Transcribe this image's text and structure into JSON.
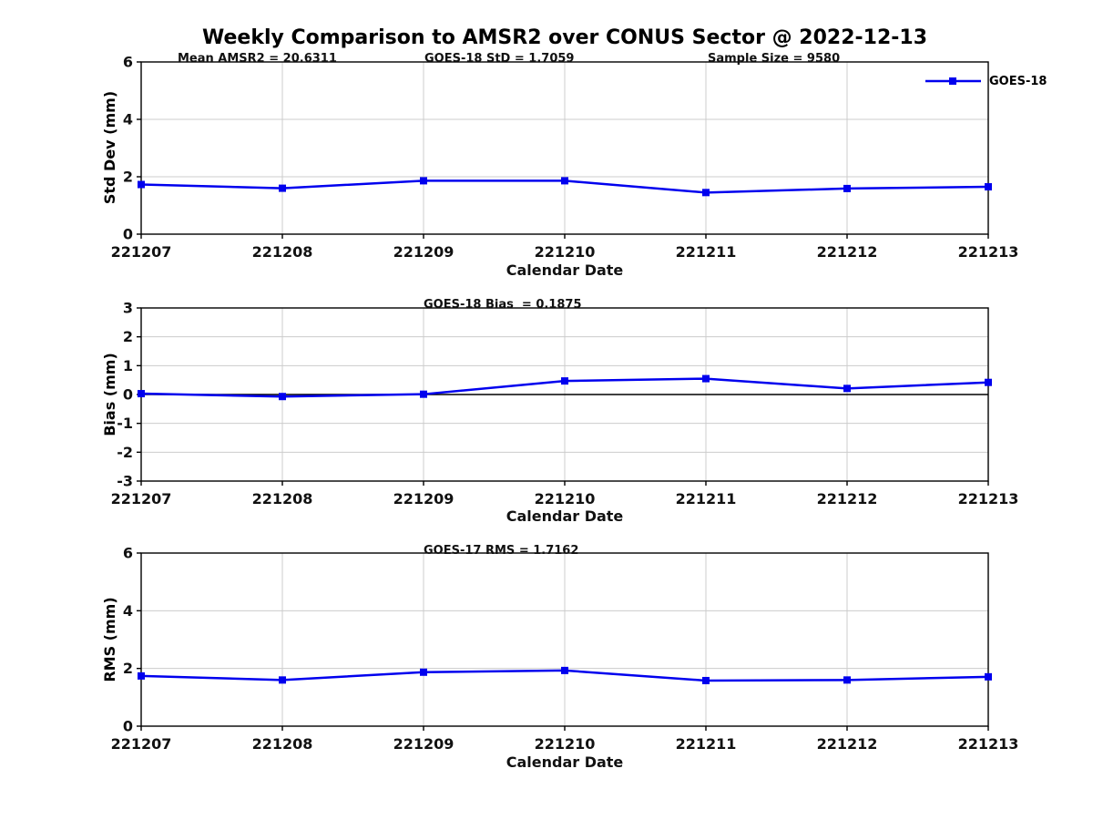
{
  "title": "Weekly Comparison to AMSR2 over CONUS Sector @ 2022-12-13",
  "colors": {
    "line": "#0000EE",
    "marker": "#0000EE",
    "grid": "#CCCCCC",
    "axis": "#000000",
    "zero_line": "#000000",
    "background": "#FFFFFF"
  },
  "legend": {
    "label": "GOES-18",
    "position": "top-right",
    "marker": "filled-square"
  },
  "chart_data": [
    {
      "type": "line",
      "name": "std-dev-panel",
      "categories": [
        "221207",
        "221208",
        "221209",
        "221210",
        "221211",
        "221212",
        "221213"
      ],
      "series": [
        {
          "name": "GOES-18",
          "values": [
            1.73,
            1.6,
            1.86,
            1.86,
            1.45,
            1.59,
            1.65
          ]
        }
      ],
      "xlabel": "Calendar Date",
      "ylabel": "Std Dev (mm)",
      "ylim": [
        0,
        6
      ],
      "yticks": [
        0,
        2,
        4,
        6
      ],
      "grid": true,
      "legend_visible": true,
      "annotations": [
        {
          "text": "Mean AMSR2 = 20.6311"
        },
        {
          "text": "GOES-18 StD = 1.7059"
        },
        {
          "text": "Sample Size = 9580"
        }
      ]
    },
    {
      "type": "line",
      "name": "bias-panel",
      "categories": [
        "221207",
        "221208",
        "221209",
        "221210",
        "221211",
        "221212",
        "221213"
      ],
      "series": [
        {
          "name": "GOES-18",
          "values": [
            0.03,
            -0.07,
            0.01,
            0.47,
            0.55,
            0.21,
            0.42
          ]
        }
      ],
      "xlabel": "Calendar Date",
      "ylabel": "Bias (mm)",
      "ylim": [
        -3,
        3
      ],
      "yticks": [
        -3,
        -2,
        -1,
        0,
        1,
        2,
        3
      ],
      "grid": true,
      "zero_line": true,
      "annotations": [
        {
          "text": "GOES-18 Bias  = 0.1875"
        }
      ]
    },
    {
      "type": "line",
      "name": "rms-panel",
      "categories": [
        "221207",
        "221208",
        "221209",
        "221210",
        "221211",
        "221212",
        "221213"
      ],
      "series": [
        {
          "name": "GOES-18",
          "values": [
            1.74,
            1.6,
            1.87,
            1.93,
            1.58,
            1.6,
            1.71
          ]
        }
      ],
      "xlabel": "Calendar Date",
      "ylabel": "RMS (mm)",
      "ylim": [
        0,
        6
      ],
      "yticks": [
        0,
        2,
        4,
        6
      ],
      "grid": true,
      "annotations": [
        {
          "text": "GOES-17 RMS = 1.7162"
        }
      ]
    }
  ]
}
